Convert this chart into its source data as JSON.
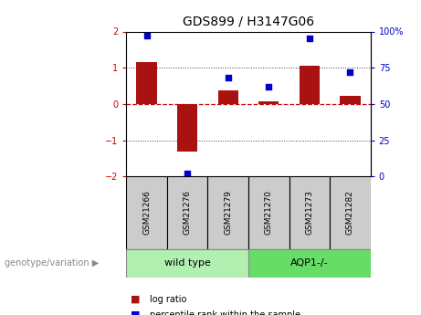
{
  "title": "GDS899 / H3147G06",
  "samples": [
    "GSM21266",
    "GSM21276",
    "GSM21279",
    "GSM21270",
    "GSM21273",
    "GSM21282"
  ],
  "log_ratios": [
    1.15,
    -1.32,
    0.38,
    0.08,
    1.05,
    0.22
  ],
  "percentile_ranks": [
    97,
    2,
    68,
    62,
    95,
    72
  ],
  "group_labels": [
    "wild type",
    "AQP1-/-"
  ],
  "group_colors": [
    "#b2f0b2",
    "#66dd66"
  ],
  "bar_color": "#aa1111",
  "dot_color": "#0000cc",
  "ylim_left": [
    -2,
    2
  ],
  "yticks_left": [
    -2,
    -1,
    0,
    1,
    2
  ],
  "yticks_right": [
    0,
    25,
    50,
    75,
    100
  ],
  "yticklabels_right": [
    "0",
    "25",
    "50",
    "75",
    "100%"
  ],
  "hline_color": "#cc0000",
  "dotted_color": "#444444",
  "group_label_text": "genotype/variation",
  "legend_items": [
    "log ratio",
    "percentile rank within the sample"
  ],
  "tick_label_color_left": "#cc0000",
  "tick_label_color_right": "#0000cc",
  "sample_box_color": "#cccccc",
  "bar_width": 0.5
}
